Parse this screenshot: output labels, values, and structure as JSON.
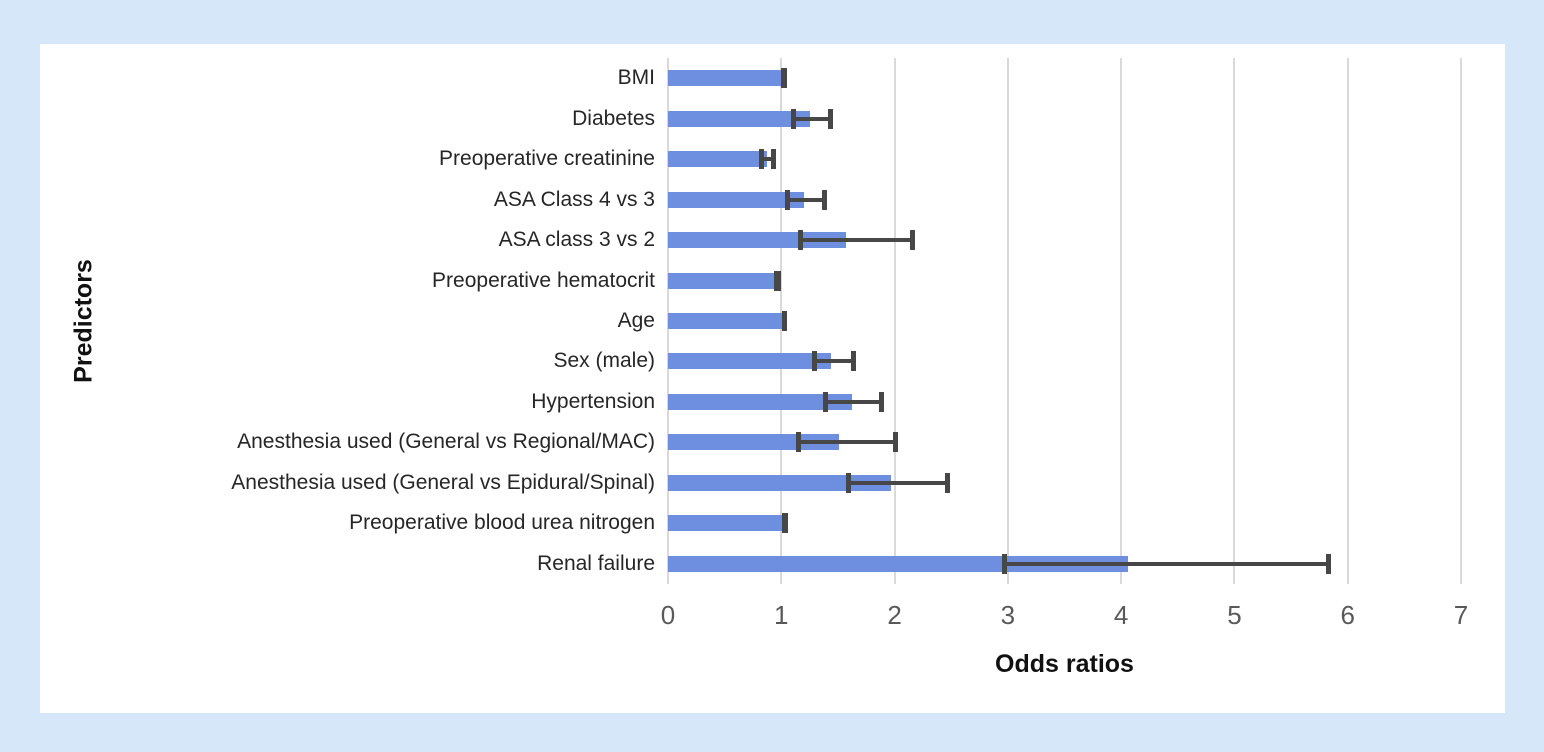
{
  "page": {
    "background_color": "#d7e7fa",
    "panel_color": "#ffffff"
  },
  "chart_data": {
    "type": "bar",
    "orientation": "horizontal",
    "title": "",
    "xlabel": "Odds ratios",
    "ylabel": "Predictors",
    "xlim": [
      0,
      7
    ],
    "x_ticks": [
      "0",
      "1",
      "2",
      "3",
      "4",
      "5",
      "6",
      "7"
    ],
    "grid": true,
    "legend_position": "none",
    "categories": [
      "BMI",
      "Diabetes",
      "Preoperative creatinine",
      "ASA Class 4 vs 3",
      "ASA class 3 vs 2",
      "Preoperative hematocrit",
      "Age",
      "Sex (male)",
      "Hypertension",
      "Anesthesia used (General vs Regional/MAC)",
      "Anesthesia used (General vs Epidural/Spinal)",
      "Preoperative blood urea nitrogen",
      "Renal failure"
    ],
    "series": [
      {
        "name": "Odds ratio",
        "values": [
          1.03,
          1.25,
          0.87,
          1.2,
          1.57,
          0.97,
          1.03,
          1.44,
          1.62,
          1.51,
          1.97,
          1.03,
          4.06
        ]
      }
    ],
    "error_low": [
      1.0,
      1.09,
      0.8,
      1.03,
      1.15,
      0.94,
      1.01,
      1.27,
      1.37,
      1.13,
      1.57,
      1.01,
      2.95
    ],
    "error_high": [
      1.05,
      1.46,
      0.95,
      1.4,
      2.18,
      1.0,
      1.05,
      1.66,
      1.91,
      2.03,
      2.49,
      1.06,
      5.85
    ],
    "bar_color": "#6e8fdf",
    "error_color": "#474747",
    "gridline_color": "#d9d9d9"
  }
}
